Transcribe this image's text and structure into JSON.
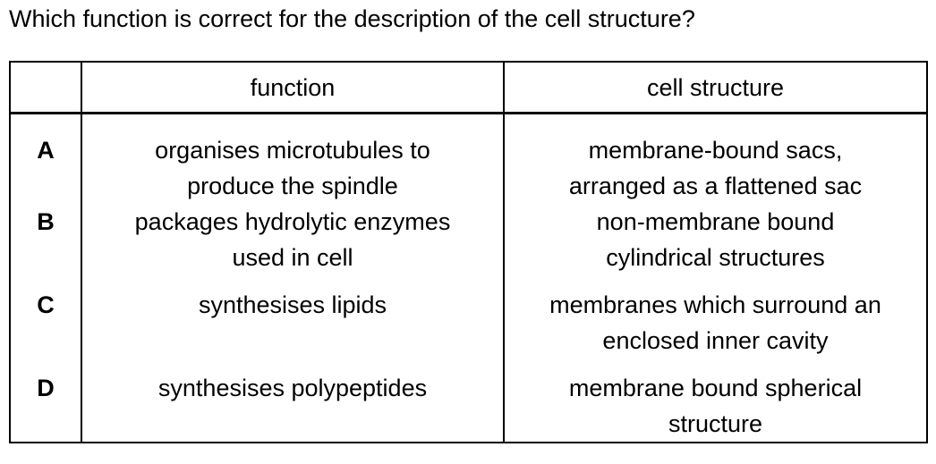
{
  "question": "Which function is correct for the description of the cell structure?",
  "table": {
    "headers": {
      "letter": "",
      "function": "function",
      "structure": "cell structure"
    },
    "rows": [
      {
        "letter": "A",
        "function_line1": "organises microtubules to",
        "function_line2": "produce the spindle",
        "structure_line1": "membrane-bound sacs,",
        "structure_line2": "arranged as a flattened sac"
      },
      {
        "letter": "B",
        "function_line1": "packages hydrolytic enzymes",
        "function_line2": "used in cell",
        "structure_line1": "non-membrane bound",
        "structure_line2": "cylindrical structures"
      },
      {
        "letter": "C",
        "function_line1": "synthesises lipids",
        "function_line2": "",
        "structure_line1": "membranes which surround an",
        "structure_line2": "enclosed inner cavity"
      },
      {
        "letter": "D",
        "function_line1": "synthesises polypeptides",
        "function_line2": "",
        "structure_line1": "membrane bound spherical",
        "structure_line2": "structure"
      }
    ]
  }
}
